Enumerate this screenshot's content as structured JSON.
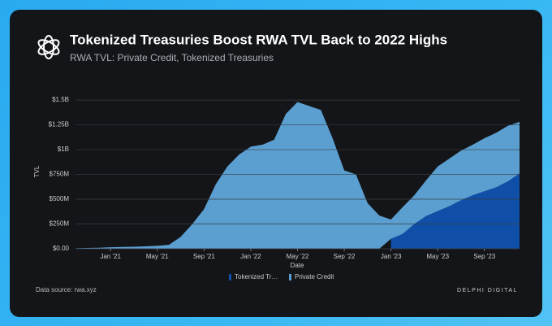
{
  "header": {
    "title": "Tokenized Treasuries Boost RWA TVL Back to 2022 Highs",
    "subtitle": "RWA TVL: Private Credit, Tokenized Treasuries"
  },
  "chart_data": {
    "type": "stacked_area",
    "x_label": "Date",
    "y_label": "TVL",
    "x": [
      "2020-10",
      "2020-11",
      "2020-12",
      "2021-01",
      "2021-02",
      "2021-03",
      "2021-04",
      "2021-05",
      "2021-06",
      "2021-07",
      "2021-08",
      "2021-09",
      "2021-10",
      "2021-11",
      "2021-12",
      "2022-01",
      "2022-02",
      "2022-03",
      "2022-04",
      "2022-05",
      "2022-06",
      "2022-07",
      "2022-08",
      "2022-09",
      "2022-10",
      "2022-11",
      "2022-12",
      "2023-01",
      "2023-02",
      "2023-03",
      "2023-04",
      "2023-05",
      "2023-06",
      "2023-07",
      "2023-08",
      "2023-09",
      "2023-10",
      "2023-11",
      "2023-12"
    ],
    "series": [
      {
        "name": "Tokenized Treasuries",
        "color": "#0f4fa8",
        "values": [
          null,
          null,
          null,
          null,
          null,
          null,
          null,
          null,
          null,
          null,
          null,
          null,
          null,
          null,
          null,
          null,
          null,
          null,
          null,
          null,
          null,
          null,
          null,
          null,
          null,
          null,
          null,
          100000000,
          150000000,
          250000000,
          330000000,
          380000000,
          430000000,
          490000000,
          540000000,
          580000000,
          620000000,
          680000000,
          760000000
        ]
      },
      {
        "name": "Private Credit",
        "color": "#5b9fd0",
        "values": [
          5000000,
          8000000,
          10000000,
          15000000,
          18000000,
          20000000,
          25000000,
          30000000,
          40000000,
          120000000,
          250000000,
          400000000,
          650000000,
          830000000,
          950000000,
          1030000000,
          1050000000,
          1100000000,
          1360000000,
          1480000000,
          1440000000,
          1400000000,
          1115000000,
          790000000,
          750000000,
          460000000,
          335000000,
          195000000,
          270000000,
          290000000,
          360000000,
          450000000,
          480000000,
          500000000,
          510000000,
          535000000,
          550000000,
          560000000,
          520000000
        ]
      }
    ],
    "xlim": [
      "2020-10",
      "2023-12"
    ],
    "xticks": [
      {
        "value": "2021-01",
        "label": "Jan '21"
      },
      {
        "value": "2021-05",
        "label": "May '21"
      },
      {
        "value": "2021-09",
        "label": "Sep '21"
      },
      {
        "value": "2022-01",
        "label": "Jan '22"
      },
      {
        "value": "2022-05",
        "label": "May '22"
      },
      {
        "value": "2022-09",
        "label": "Sep '22"
      },
      {
        "value": "2023-01",
        "label": "Jan '23"
      },
      {
        "value": "2023-05",
        "label": "May '23"
      },
      {
        "value": "2023-09",
        "label": "Sep '23"
      }
    ],
    "ylim": [
      0,
      1550000000
    ],
    "yticks": [
      {
        "value": 0,
        "label": "$0.00"
      },
      {
        "value": 250000000,
        "label": "$250M"
      },
      {
        "value": 500000000,
        "label": "$500M"
      },
      {
        "value": 750000000,
        "label": "$750M"
      },
      {
        "value": 1000000000,
        "label": "$1B"
      },
      {
        "value": 1250000000,
        "label": "$1.25B"
      },
      {
        "value": 1500000000,
        "label": "$1.5B"
      }
    ],
    "grid": true
  },
  "footer": {
    "source": "Data source: rwa.xyz",
    "brand": "DELPHI DIGITAL"
  }
}
